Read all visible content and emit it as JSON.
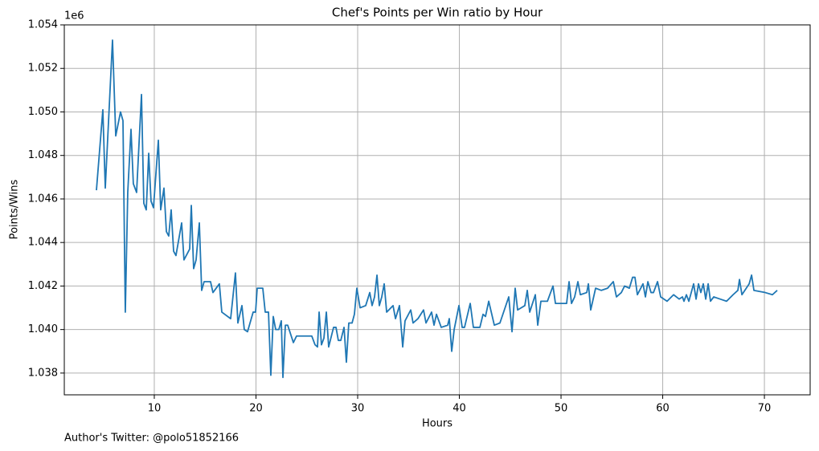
{
  "chart_data": {
    "type": "line",
    "title": "Chef's Points per Win ratio by Hour",
    "xlabel": "Hours",
    "ylabel": "Points/Wins",
    "offset_label": "1e6",
    "footer": "Author's Twitter: @polo51852166",
    "grid": true,
    "xlim": [
      1.15,
      74.5
    ],
    "xticks": [
      10,
      20,
      30,
      40,
      50,
      60,
      70
    ],
    "ylim": [
      1.037,
      1.054
    ],
    "yticks": [
      {
        "value": 1.038,
        "label": "1.038"
      },
      {
        "value": 1.04,
        "label": "1.040"
      },
      {
        "value": 1.042,
        "label": "1.042"
      },
      {
        "value": 1.044,
        "label": "1.044"
      },
      {
        "value": 1.046,
        "label": "1.046"
      },
      {
        "value": 1.048,
        "label": "1.048"
      },
      {
        "value": 1.05,
        "label": "1.050"
      },
      {
        "value": 1.052,
        "label": "1.052"
      },
      {
        "value": 1.054,
        "label": "1.054"
      }
    ],
    "series": [
      {
        "name": "Points/Wins",
        "color": "#1f77b4",
        "x": [
          4.31,
          4.94,
          5.18,
          5.89,
          6.21,
          6.68,
          6.92,
          7.15,
          7.39,
          7.71,
          7.94,
          8.26,
          8.74,
          8.97,
          9.21,
          9.45,
          9.68,
          9.92,
          10.4,
          10.63,
          10.95,
          11.19,
          11.42,
          11.66,
          11.9,
          12.13,
          12.69,
          12.92,
          13.48,
          13.64,
          13.87,
          14.11,
          14.43,
          14.66,
          14.9,
          15.53,
          15.77,
          16.4,
          16.64,
          17.51,
          17.98,
          18.22,
          18.62,
          18.85,
          19.17,
          19.72,
          19.96,
          20.12,
          20.67,
          20.91,
          21.23,
          21.46,
          21.7,
          21.94,
          22.25,
          22.49,
          22.65,
          22.89,
          23.12,
          23.68,
          23.99,
          25.49,
          25.81,
          26.05,
          26.21,
          26.44,
          26.68,
          26.92,
          27.15,
          27.63,
          27.87,
          28.1,
          28.34,
          28.66,
          28.89,
          29.13,
          29.45,
          29.68,
          29.92,
          30.24,
          30.79,
          31.19,
          31.42,
          31.66,
          31.9,
          32.13,
          32.37,
          32.61,
          32.85,
          33.48,
          33.72,
          34.11,
          34.43,
          34.66,
          35.22,
          35.45,
          35.93,
          36.48,
          36.72,
          37.27,
          37.51,
          37.75,
          38.22,
          38.85,
          39.01,
          39.25,
          39.49,
          39.96,
          40.28,
          40.51,
          41.07,
          41.38,
          42.02,
          42.33,
          42.57,
          42.89,
          43.44,
          43.99,
          44.86,
          45.18,
          45.49,
          45.73,
          46.44,
          46.68,
          46.92,
          47.47,
          47.71,
          48.02,
          48.66,
          49.21,
          49.45,
          50.55,
          50.79,
          51.03,
          51.34,
          51.66,
          51.9,
          52.53,
          52.69,
          52.92,
          53.4,
          53.95,
          54.58,
          55.14,
          55.45,
          55.93,
          56.25,
          56.72,
          57.04,
          57.27,
          57.51,
          58.06,
          58.3,
          58.54,
          58.85,
          59.09,
          59.49,
          59.8,
          60.43,
          61.07,
          61.62,
          61.94,
          62.09,
          62.33,
          62.57,
          63.04,
          63.28,
          63.52,
          63.75,
          63.99,
          64.23,
          64.47,
          64.7,
          65.02,
          65.65,
          66.28,
          66.92,
          67.39,
          67.55,
          67.79,
          68.5,
          68.74,
          68.97,
          70.08,
          70.79,
          71.26
        ],
        "values": [
          1.0464,
          1.0501,
          1.0465,
          1.0533,
          1.0489,
          1.05,
          1.0496,
          1.0408,
          1.0463,
          1.0492,
          1.0467,
          1.0463,
          1.0508,
          1.0458,
          1.0455,
          1.0481,
          1.0459,
          1.0456,
          1.0487,
          1.0455,
          1.0465,
          1.0445,
          1.0443,
          1.0455,
          1.0436,
          1.0434,
          1.0449,
          1.0432,
          1.0437,
          1.0457,
          1.0428,
          1.0432,
          1.0449,
          1.0418,
          1.0422,
          1.0422,
          1.0417,
          1.0421,
          1.0408,
          1.0405,
          1.0426,
          1.0403,
          1.0411,
          1.04,
          1.0399,
          1.0408,
          1.0408,
          1.0419,
          1.0419,
          1.0408,
          1.0408,
          1.0379,
          1.0406,
          1.04,
          1.04,
          1.0404,
          1.0378,
          1.0402,
          1.0402,
          1.0394,
          1.0397,
          1.0397,
          1.0393,
          1.0392,
          1.0408,
          1.0393,
          1.0396,
          1.0408,
          1.0392,
          1.0401,
          1.0401,
          1.0395,
          1.0395,
          1.0401,
          1.0385,
          1.0403,
          1.0403,
          1.0407,
          1.0419,
          1.041,
          1.0411,
          1.0417,
          1.0411,
          1.0415,
          1.0425,
          1.0411,
          1.0415,
          1.0421,
          1.0408,
          1.0411,
          1.0405,
          1.0411,
          1.0392,
          1.0404,
          1.0409,
          1.0403,
          1.0405,
          1.0409,
          1.0403,
          1.0408,
          1.0402,
          1.0407,
          1.0401,
          1.0402,
          1.0405,
          1.039,
          1.04,
          1.0411,
          1.0401,
          1.0401,
          1.0412,
          1.0401,
          1.0401,
          1.0407,
          1.0406,
          1.0413,
          1.0402,
          1.0403,
          1.0415,
          1.0399,
          1.0419,
          1.0409,
          1.0411,
          1.0418,
          1.0408,
          1.0416,
          1.0402,
          1.0413,
          1.0413,
          1.042,
          1.0412,
          1.0412,
          1.0422,
          1.0412,
          1.0415,
          1.0422,
          1.0416,
          1.0417,
          1.0421,
          1.0409,
          1.0419,
          1.0418,
          1.0419,
          1.0422,
          1.0415,
          1.0417,
          1.042,
          1.0419,
          1.0424,
          1.0424,
          1.0416,
          1.0421,
          1.0415,
          1.0422,
          1.0417,
          1.0417,
          1.0422,
          1.0415,
          1.0413,
          1.0416,
          1.0414,
          1.0415,
          1.0413,
          1.0416,
          1.0413,
          1.0421,
          1.0414,
          1.0421,
          1.0417,
          1.0421,
          1.0414,
          1.0421,
          1.0413,
          1.0415,
          1.0414,
          1.0413,
          1.0416,
          1.0418,
          1.0423,
          1.0416,
          1.0421,
          1.0425,
          1.0418,
          1.0417,
          1.0416,
          1.0418
        ]
      }
    ]
  }
}
